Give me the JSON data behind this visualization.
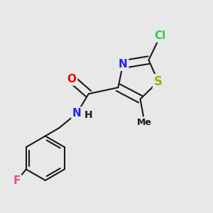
{
  "bg_color": "#e8e8e8",
  "bond_color": "#1a1a1a",
  "bond_lw": 1.5,
  "dbo": 0.018,
  "atom_colors": {
    "Cl": "#33cc33",
    "S": "#aaaa00",
    "N": "#2222ee",
    "O": "#ee0000",
    "F": "#ee44aa",
    "C": "#1a1a1a"
  },
  "fs": 11,
  "fs_small": 9
}
